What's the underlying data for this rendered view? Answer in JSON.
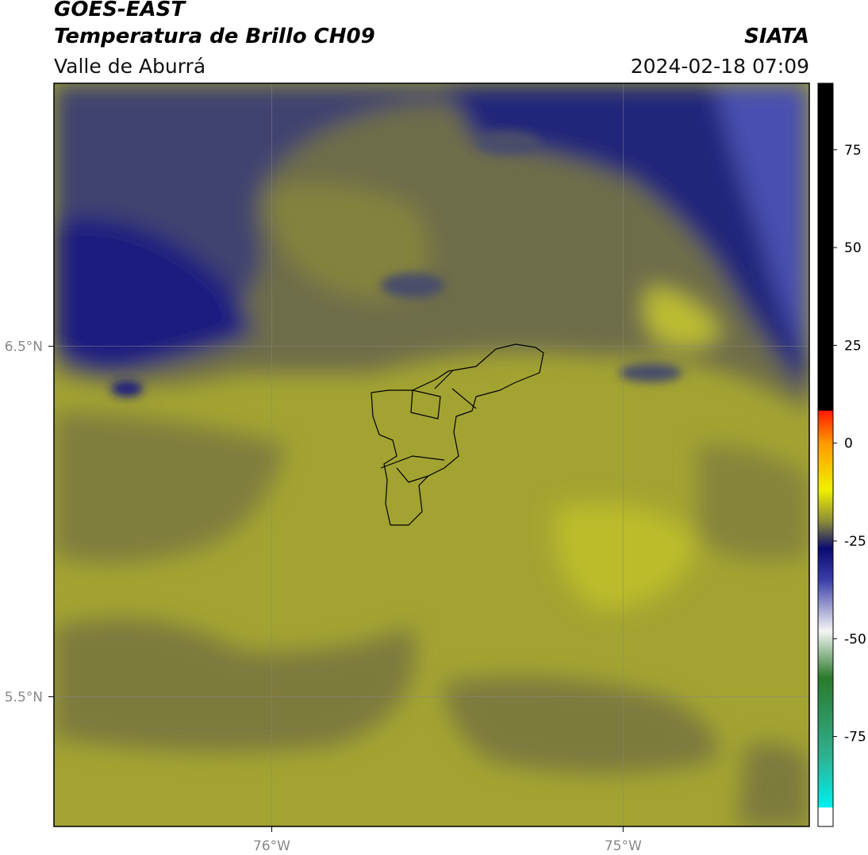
{
  "header": {
    "title": "GOES-EAST",
    "subtitle": "Temperatura de Brillo CH09",
    "source": "SIATA",
    "region": "Valle de Aburrá",
    "timestamp": "2024-02-18 07:09"
  },
  "map": {
    "xlim": [
      -76.62,
      -74.47
    ],
    "ylim": [
      5.13,
      7.25
    ],
    "xticks": [
      {
        "value": -76,
        "label": "76°W"
      },
      {
        "value": -75,
        "label": "75°W"
      }
    ],
    "yticks": [
      {
        "value": 6.5,
        "label": "6.5°N"
      },
      {
        "value": 5.5,
        "label": "5.5°N"
      }
    ],
    "grid": true
  },
  "colorbar": {
    "lim": [
      -98,
      92
    ],
    "ticks": [
      75,
      50,
      25,
      0,
      -25,
      -50,
      -75
    ]
  }
}
